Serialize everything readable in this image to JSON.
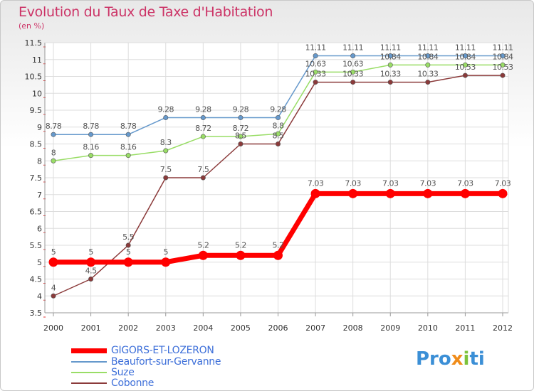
{
  "chart_data": {
    "type": "line",
    "title": "Evolution du Taux de Taxe d'Habitation",
    "ylabel": "(en %)",
    "xlabel": "",
    "x": [
      "2000",
      "2001",
      "2002",
      "2003",
      "2004",
      "2005",
      "2006",
      "2007",
      "2008",
      "2009",
      "2010",
      "2011",
      "2012"
    ],
    "ylim": [
      3.5,
      11.5
    ],
    "yticks": [
      "3.5",
      "4",
      "4.5",
      "5",
      "5.5",
      "6",
      "6.5",
      "7",
      "7.5",
      "8",
      "8.5",
      "9",
      "9.5",
      "10",
      "10.5",
      "11",
      "11.5"
    ],
    "grid": true,
    "series": [
      {
        "name": "GIGORS-ET-LOZERON",
        "color": "#ff0000",
        "values": [
          5,
          5,
          5,
          5,
          5.2,
          5.2,
          5.2,
          7.03,
          7.03,
          7.03,
          7.03,
          7.03,
          7.03
        ],
        "labels": [
          "5",
          "5",
          "5",
          "5",
          "5.2",
          "5.2",
          "5.2",
          "7.03",
          "7.03",
          "7.03",
          "7.03",
          "7.03",
          "7.03"
        ]
      },
      {
        "name": "Beaufort-sur-Gervanne",
        "color": "#6699cc",
        "values": [
          8.78,
          8.78,
          8.78,
          9.28,
          9.28,
          9.28,
          9.28,
          11.11,
          11.11,
          11.11,
          11.11,
          11.11,
          11.11
        ],
        "labels": [
          "8.78",
          "8.78",
          "8.78",
          "9.28",
          "9.28",
          "9.28",
          "9.28",
          "11.11",
          "11.11",
          "11.11",
          "11.11",
          "11.11",
          "11.11"
        ]
      },
      {
        "name": "Suze",
        "color": "#99dd66",
        "values": [
          8,
          8.16,
          8.16,
          8.3,
          8.72,
          8.72,
          8.8,
          10.63,
          10.63,
          10.84,
          10.84,
          10.84,
          10.84
        ],
        "labels": [
          "8",
          "8.16",
          "8.16",
          "8.3",
          "8.72",
          "8.72",
          "8.8",
          "10.63",
          "10.63",
          "10.84",
          "10.84",
          "10.84",
          "10.84"
        ]
      },
      {
        "name": "Cobonne",
        "color": "#8b3a3a",
        "values": [
          4,
          4.5,
          5.5,
          7.5,
          7.5,
          8.5,
          8.5,
          10.33,
          10.33,
          10.33,
          10.33,
          10.53,
          10.53
        ],
        "labels": [
          "4",
          "4.5",
          "5.5",
          "7.5",
          "7.5",
          "8.5",
          "8.5",
          "10.33",
          "10.33",
          "10.33",
          "10.33",
          "10.53",
          "10.53"
        ]
      }
    ]
  },
  "legend": [
    {
      "name": "GIGORS-ET-LOZERON"
    },
    {
      "name": "Beaufort-sur-Gervanne"
    },
    {
      "name": "Suze"
    },
    {
      "name": "Cobonne"
    }
  ],
  "logo_parts": [
    "Pro",
    "x",
    "i",
    "ti"
  ]
}
